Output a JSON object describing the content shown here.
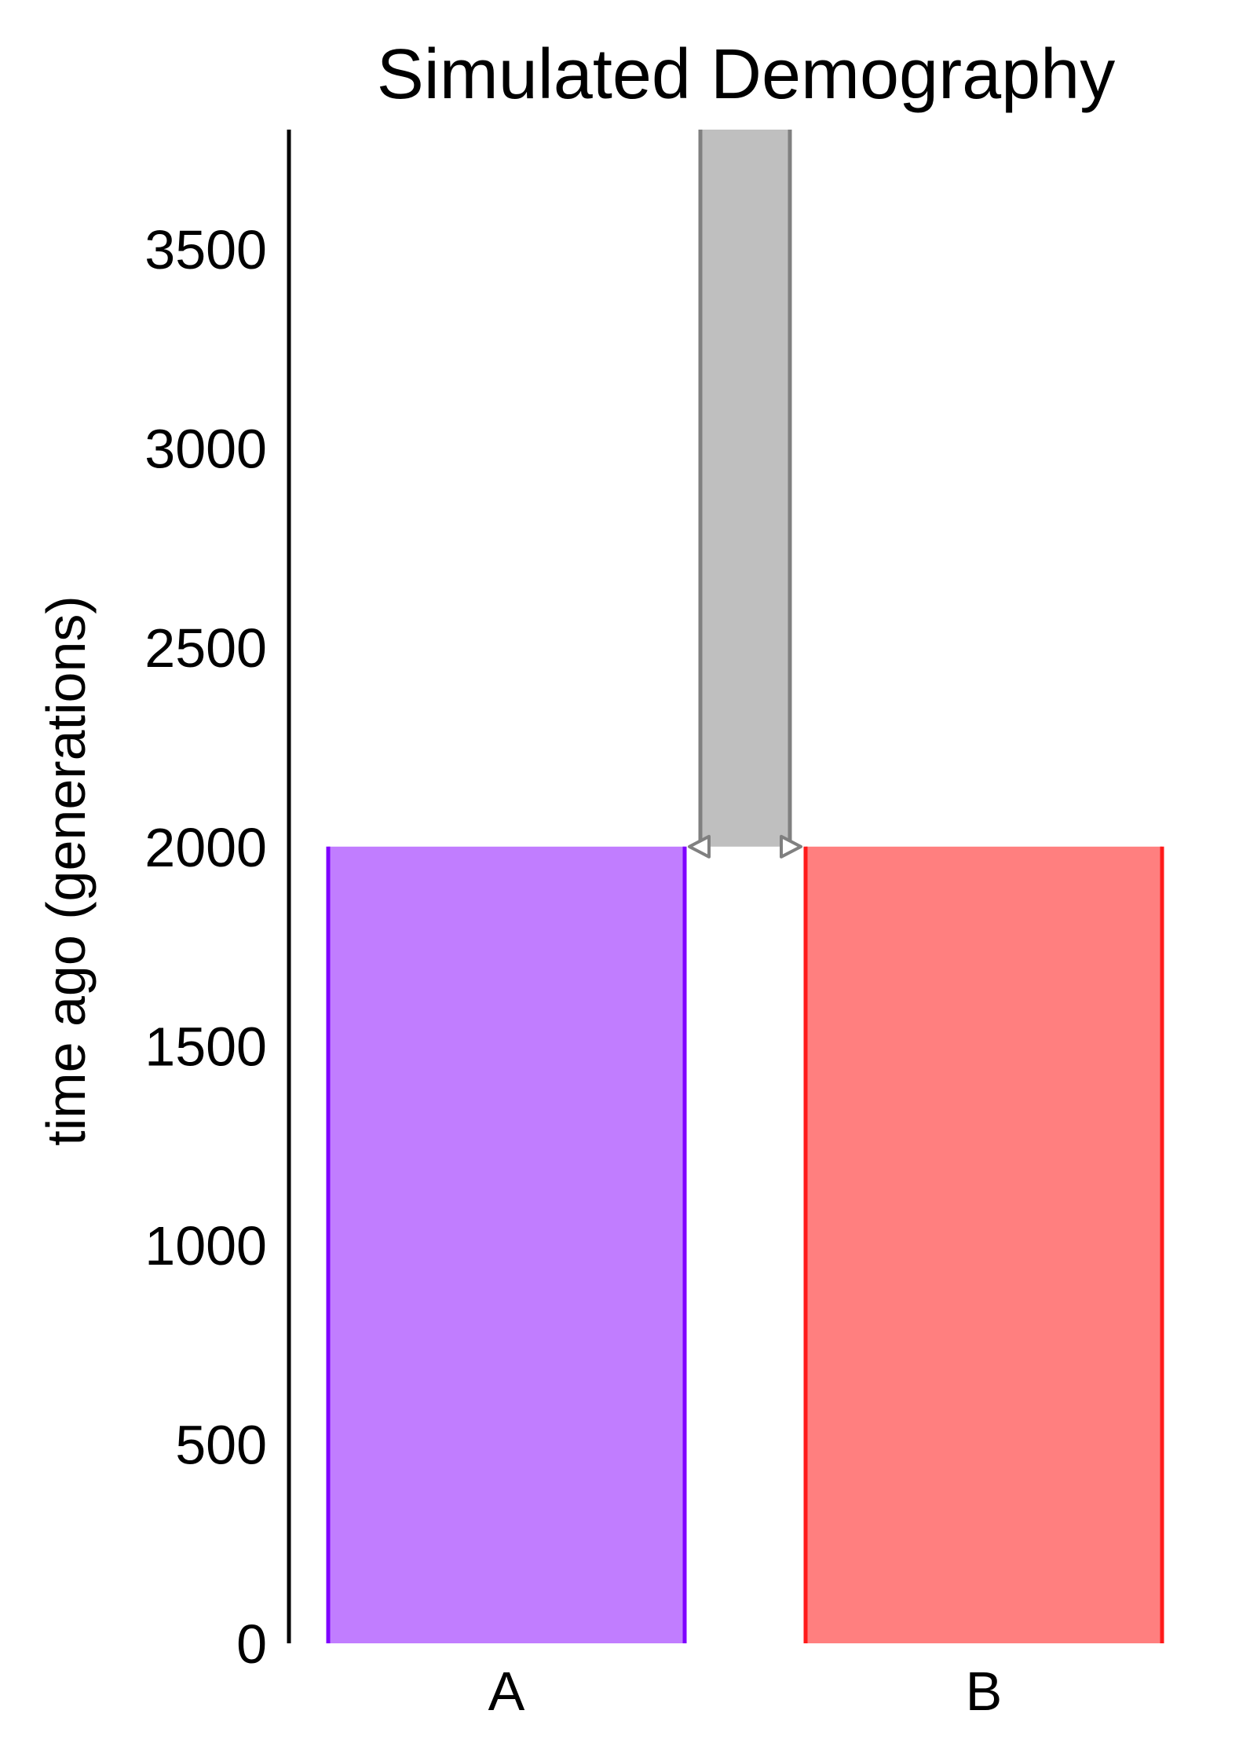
{
  "chart_data": {
    "type": "demography",
    "title": "Simulated Demography",
    "ylabel": "time ago (generations)",
    "ylim": [
      0,
      3800
    ],
    "yticks": [
      0,
      500,
      1000,
      1500,
      2000,
      2500,
      3000,
      3500
    ],
    "populations": [
      {
        "name": "A",
        "start_time": 0,
        "end_time": 2000,
        "fill": "#c17dff",
        "stroke": "#7f00ff"
      },
      {
        "name": "B",
        "start_time": 0,
        "end_time": 2000,
        "fill": "#ff7f7f",
        "stroke": "#ff1a1a"
      },
      {
        "name": "",
        "start_time": 2000,
        "end_time": 3800,
        "fill": "#bfbfbf",
        "stroke": "#808080"
      }
    ],
    "split": {
      "time": 2000,
      "from": "ancestral",
      "to": [
        "A",
        "B"
      ]
    },
    "grid": false,
    "legend": "none"
  }
}
